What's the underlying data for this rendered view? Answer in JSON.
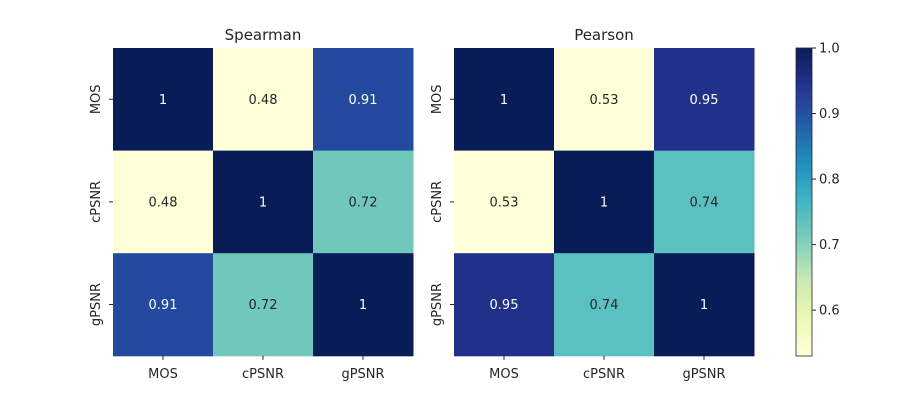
{
  "chart_data": {
    "type": "heatmap",
    "panels": [
      {
        "title": "Spearman",
        "row_labels": [
          "MOS",
          "cPSNR",
          "gPSNR"
        ],
        "col_labels": [
          "MOS",
          "cPSNR",
          "gPSNR"
        ],
        "values": [
          [
            1,
            0.48,
            0.91
          ],
          [
            0.48,
            1,
            0.72
          ],
          [
            0.91,
            0.72,
            1
          ]
        ],
        "annotations": [
          [
            "1",
            "0.48",
            "0.91"
          ],
          [
            "0.48",
            "1",
            "0.72"
          ],
          [
            "0.91",
            "0.72",
            "1"
          ]
        ]
      },
      {
        "title": "Pearson",
        "row_labels": [
          "MOS",
          "cPSNR",
          "gPSNR"
        ],
        "col_labels": [
          "MOS",
          "cPSNR",
          "gPSNR"
        ],
        "values": [
          [
            1,
            0.53,
            0.95
          ],
          [
            0.53,
            1,
            0.74
          ],
          [
            0.95,
            0.74,
            1
          ]
        ],
        "annotations": [
          [
            "1",
            "0.53",
            "0.95"
          ],
          [
            "0.53",
            "1",
            "0.74"
          ],
          [
            "0.95",
            "0.74",
            "1"
          ]
        ]
      }
    ],
    "colorbar": {
      "colormap": "YlGnBu",
      "range": [
        0.53,
        1.0
      ],
      "ticks": [
        0.6,
        0.7,
        0.8,
        0.9,
        1.0
      ],
      "tick_labels": [
        "0.6",
        "0.7",
        "0.8",
        "0.9",
        "1.0"
      ]
    }
  }
}
